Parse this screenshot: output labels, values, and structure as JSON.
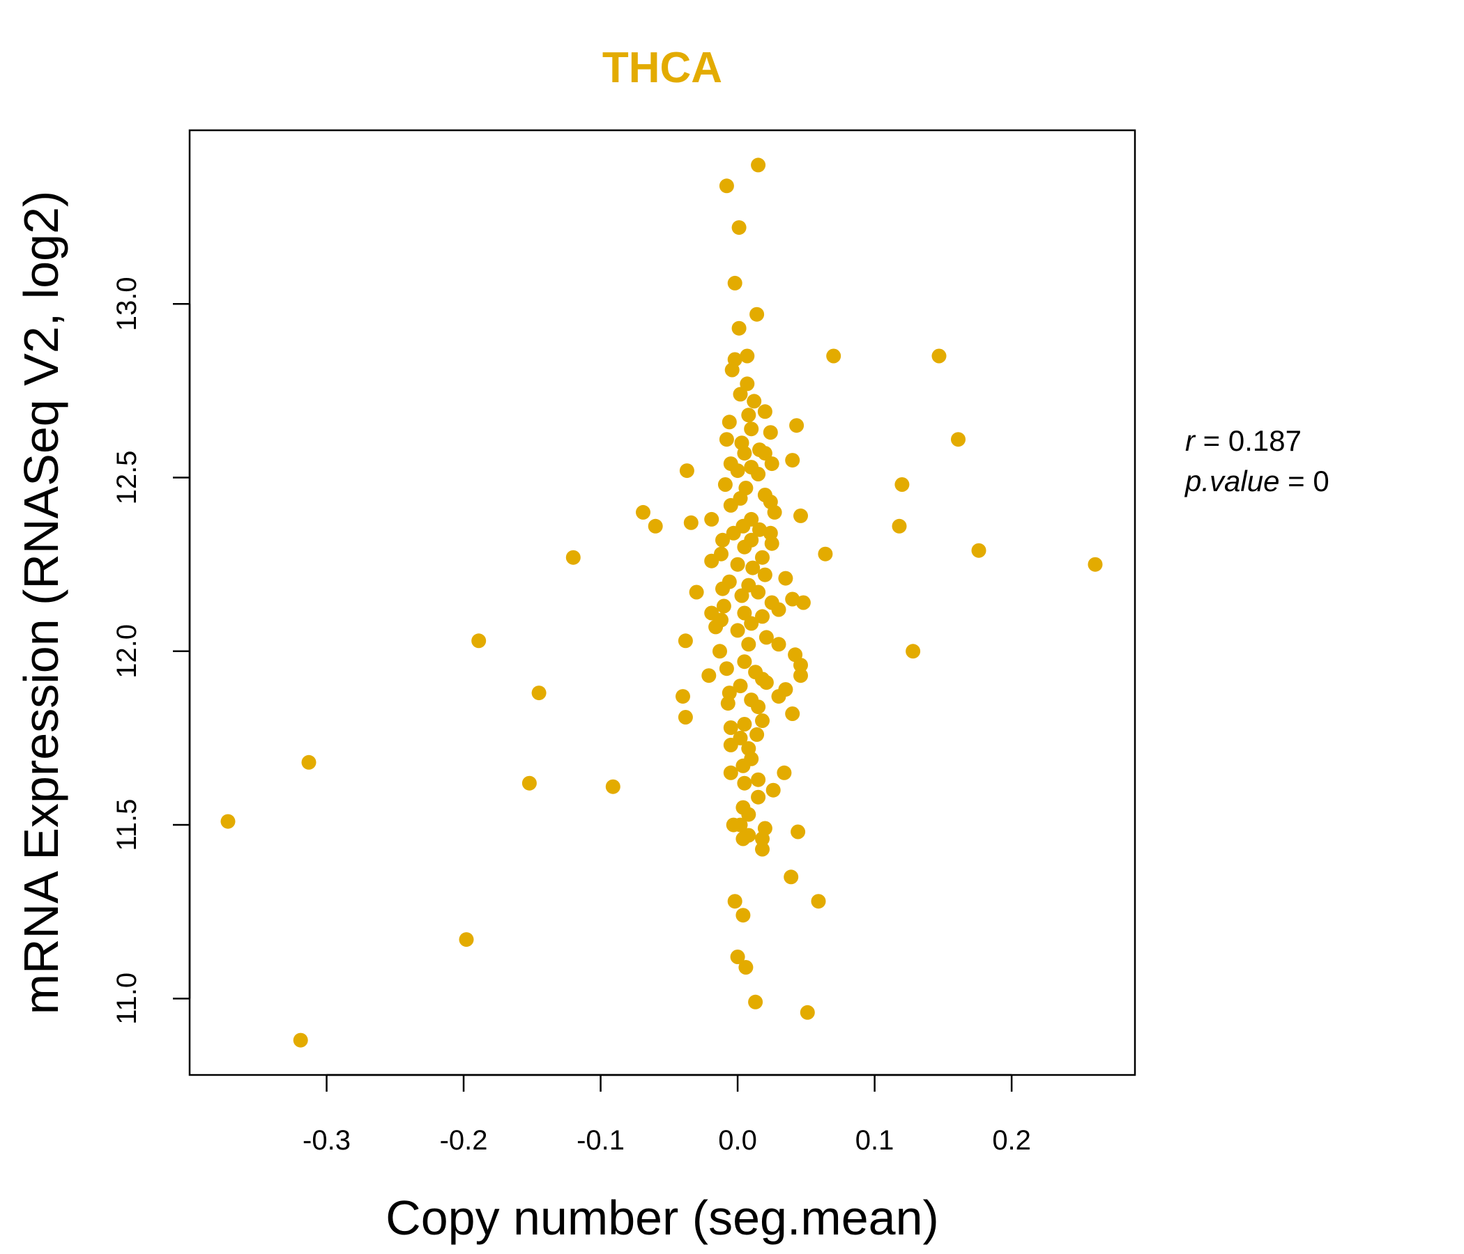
{
  "chart_data": {
    "type": "scatter",
    "title": "THCA",
    "xlabel": "Copy number (seg.mean)",
    "ylabel": "mRNA Expression (RNASeq V2, log2)",
    "xlim": [
      -0.4,
      0.29
    ],
    "ylim": [
      10.78,
      13.5
    ],
    "xticks": [
      -0.3,
      -0.2,
      -0.1,
      0.0,
      0.1,
      0.2
    ],
    "xtick_labels": [
      "-0.3",
      "-0.2",
      "-0.1",
      "0.0",
      "0.1",
      "0.2"
    ],
    "yticks": [
      11.0,
      11.5,
      12.0,
      12.5,
      13.0
    ],
    "ytick_labels": [
      "11.0",
      "11.5",
      "12.0",
      "12.5",
      "13.0"
    ],
    "color": "#E3AB00",
    "stats": {
      "r_symbol": "r",
      "r_value": "0.187",
      "p_symbol": "p.value",
      "p_value": "0"
    },
    "points": [
      [
        0.015,
        13.4
      ],
      [
        -0.008,
        13.34
      ],
      [
        0.001,
        13.22
      ],
      [
        -0.002,
        13.06
      ],
      [
        0.014,
        12.97
      ],
      [
        0.001,
        12.93
      ],
      [
        0.07,
        12.85
      ],
      [
        0.147,
        12.85
      ],
      [
        0.007,
        12.85
      ],
      [
        -0.002,
        12.84
      ],
      [
        -0.004,
        12.81
      ],
      [
        0.007,
        12.77
      ],
      [
        0.002,
        12.74
      ],
      [
        0.012,
        12.72
      ],
      [
        0.02,
        12.69
      ],
      [
        0.008,
        12.68
      ],
      [
        -0.006,
        12.66
      ],
      [
        0.043,
        12.65
      ],
      [
        0.01,
        12.64
      ],
      [
        0.024,
        12.63
      ],
      [
        0.161,
        12.61
      ],
      [
        -0.008,
        12.61
      ],
      [
        0.003,
        12.6
      ],
      [
        0.016,
        12.58
      ],
      [
        0.02,
        12.57
      ],
      [
        0.005,
        12.57
      ],
      [
        0.04,
        12.55
      ],
      [
        -0.005,
        12.54
      ],
      [
        0.025,
        12.54
      ],
      [
        0.01,
        12.53
      ],
      [
        -0.037,
        12.52
      ],
      [
        0.0,
        12.52
      ],
      [
        0.015,
        12.51
      ],
      [
        0.12,
        12.48
      ],
      [
        -0.009,
        12.48
      ],
      [
        0.006,
        12.47
      ],
      [
        0.02,
        12.45
      ],
      [
        0.002,
        12.44
      ],
      [
        0.024,
        12.43
      ],
      [
        -0.005,
        12.42
      ],
      [
        -0.069,
        12.4
      ],
      [
        0.027,
        12.4
      ],
      [
        0.046,
        12.39
      ],
      [
        -0.019,
        12.38
      ],
      [
        0.01,
        12.38
      ],
      [
        -0.034,
        12.37
      ],
      [
        -0.06,
        12.36
      ],
      [
        0.118,
        12.36
      ],
      [
        0.004,
        12.36
      ],
      [
        0.016,
        12.35
      ],
      [
        -0.003,
        12.34
      ],
      [
        0.024,
        12.34
      ],
      [
        0.01,
        12.32
      ],
      [
        -0.011,
        12.32
      ],
      [
        0.025,
        12.31
      ],
      [
        0.005,
        12.3
      ],
      [
        0.176,
        12.29
      ],
      [
        0.064,
        12.28
      ],
      [
        -0.012,
        12.28
      ],
      [
        0.018,
        12.27
      ],
      [
        -0.12,
        12.27
      ],
      [
        -0.019,
        12.26
      ],
      [
        0.261,
        12.25
      ],
      [
        0.0,
        12.25
      ],
      [
        0.011,
        12.24
      ],
      [
        0.02,
        12.22
      ],
      [
        0.035,
        12.21
      ],
      [
        -0.006,
        12.2
      ],
      [
        0.008,
        12.19
      ],
      [
        -0.011,
        12.18
      ],
      [
        0.015,
        12.17
      ],
      [
        -0.03,
        12.17
      ],
      [
        0.003,
        12.16
      ],
      [
        0.04,
        12.15
      ],
      [
        0.025,
        12.14
      ],
      [
        0.048,
        12.14
      ],
      [
        -0.01,
        12.13
      ],
      [
        0.03,
        12.12
      ],
      [
        -0.019,
        12.11
      ],
      [
        0.005,
        12.11
      ],
      [
        0.018,
        12.1
      ],
      [
        -0.012,
        12.09
      ],
      [
        0.01,
        12.08
      ],
      [
        -0.016,
        12.07
      ],
      [
        0.0,
        12.06
      ],
      [
        0.021,
        12.04
      ],
      [
        -0.038,
        12.03
      ],
      [
        -0.189,
        12.03
      ],
      [
        0.008,
        12.02
      ],
      [
        0.03,
        12.02
      ],
      [
        -0.013,
        12.0
      ],
      [
        0.128,
        12.0
      ],
      [
        0.042,
        11.99
      ],
      [
        0.005,
        11.97
      ],
      [
        0.046,
        11.96
      ],
      [
        -0.008,
        11.95
      ],
      [
        0.013,
        11.94
      ],
      [
        -0.021,
        11.93
      ],
      [
        0.046,
        11.93
      ],
      [
        0.018,
        11.92
      ],
      [
        0.021,
        11.91
      ],
      [
        0.002,
        11.9
      ],
      [
        0.035,
        11.89
      ],
      [
        -0.006,
        11.88
      ],
      [
        0.03,
        11.87
      ],
      [
        -0.145,
        11.88
      ],
      [
        -0.04,
        11.87
      ],
      [
        0.01,
        11.86
      ],
      [
        -0.007,
        11.85
      ],
      [
        0.015,
        11.84
      ],
      [
        0.04,
        11.82
      ],
      [
        -0.038,
        11.81
      ],
      [
        0.018,
        11.8
      ],
      [
        0.005,
        11.79
      ],
      [
        -0.005,
        11.78
      ],
      [
        0.014,
        11.76
      ],
      [
        0.002,
        11.75
      ],
      [
        -0.005,
        11.73
      ],
      [
        0.008,
        11.72
      ],
      [
        0.01,
        11.69
      ],
      [
        -0.313,
        11.68
      ],
      [
        0.004,
        11.67
      ],
      [
        -0.005,
        11.65
      ],
      [
        0.034,
        11.65
      ],
      [
        0.015,
        11.63
      ],
      [
        0.005,
        11.62
      ],
      [
        -0.152,
        11.62
      ],
      [
        -0.091,
        11.61
      ],
      [
        0.026,
        11.6
      ],
      [
        0.015,
        11.58
      ],
      [
        0.004,
        11.55
      ],
      [
        0.008,
        11.53
      ],
      [
        -0.372,
        11.51
      ],
      [
        0.002,
        11.5
      ],
      [
        -0.003,
        11.5
      ],
      [
        0.02,
        11.49
      ],
      [
        0.044,
        11.48
      ],
      [
        0.008,
        11.47
      ],
      [
        0.018,
        11.46
      ],
      [
        0.004,
        11.46
      ],
      [
        0.018,
        11.43
      ],
      [
        0.039,
        11.35
      ],
      [
        0.059,
        11.28
      ],
      [
        -0.002,
        11.28
      ],
      [
        0.004,
        11.24
      ],
      [
        -0.198,
        11.17
      ],
      [
        0.0,
        11.12
      ],
      [
        0.006,
        11.09
      ],
      [
        0.013,
        10.99
      ],
      [
        0.051,
        10.96
      ],
      [
        -0.319,
        10.88
      ]
    ]
  }
}
